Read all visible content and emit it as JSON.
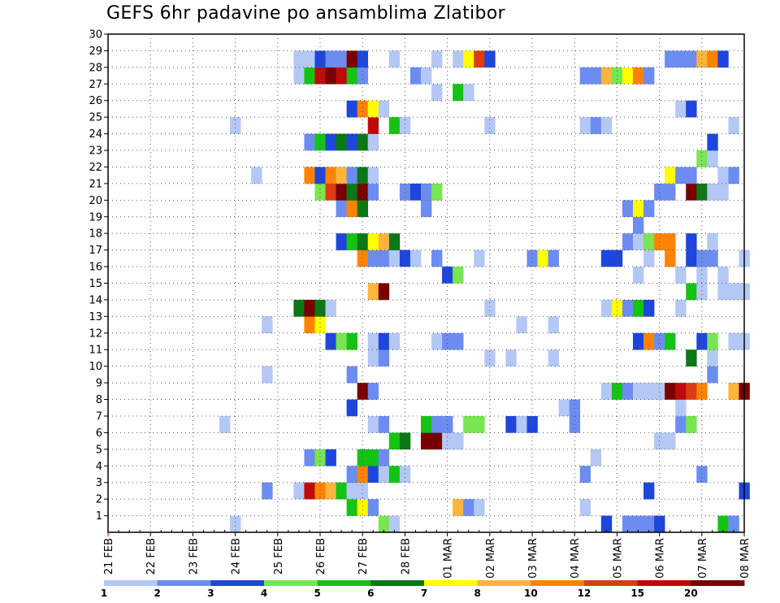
{
  "chart_data": {
    "type": "heatmap",
    "title": "GEFS 6hr padavine po ansamblima Zlatibor",
    "xlabel": "",
    "ylabel": "",
    "x_ticks": [
      "21 FEB",
      "22 FEB",
      "23 FEB",
      "24 FEB",
      "25 FEB",
      "26 FEB",
      "27 FEB",
      "28 FEB",
      "01 MAR",
      "02 MAR",
      "03 MAR",
      "04 MAR",
      "05 MAR",
      "06 MAR",
      "07 MAR",
      "08 MAR"
    ],
    "y_ticks": [
      "1",
      "2",
      "3",
      "4",
      "5",
      "6",
      "7",
      "8",
      "9",
      "10",
      "11",
      "12",
      "13",
      "14",
      "15",
      "16",
      "17",
      "18",
      "19",
      "20",
      "21",
      "22",
      "23",
      "24",
      "25",
      "26",
      "27",
      "28",
      "29",
      "30"
    ],
    "timesteps_per_day": 4,
    "n_timesteps": 61,
    "ylim": [
      0,
      30
    ],
    "grid": true,
    "color_levels": [
      "1",
      "2",
      "3",
      "4",
      "5",
      "6",
      "7",
      "8",
      "10",
      "12",
      "15",
      "20"
    ],
    "colors": [
      "#b4c8f5",
      "#6c8cf0",
      "#1e46dc",
      "#78e650",
      "#14c314",
      "#0a7814",
      "#ffff00",
      "#ffb43c",
      "#ff8200",
      "#dc3c14",
      "#be0a0a",
      "#780000"
    ],
    "cells": [
      {
        "t": 47,
        "m": 1,
        "c": 2
      },
      {
        "t": 49,
        "m": 1,
        "c": 1
      },
      {
        "t": 50,
        "m": 1,
        "c": 1
      },
      {
        "t": 51,
        "m": 1,
        "c": 1
      },
      {
        "t": 52,
        "m": 1,
        "c": 2
      },
      {
        "t": 58,
        "m": 1,
        "c": 4
      },
      {
        "t": 59,
        "m": 1,
        "c": 1
      },
      {
        "t": 12,
        "m": 1,
        "c": 0
      },
      {
        "t": 26,
        "m": 1,
        "c": 3
      },
      {
        "t": 27,
        "m": 1,
        "c": 0
      },
      {
        "t": 23,
        "m": 2,
        "c": 4
      },
      {
        "t": 24,
        "m": 2,
        "c": 6
      },
      {
        "t": 25,
        "m": 2,
        "c": 1
      },
      {
        "t": 33,
        "m": 2,
        "c": 7
      },
      {
        "t": 34,
        "m": 2,
        "c": 1
      },
      {
        "t": 35,
        "m": 2,
        "c": 0
      },
      {
        "t": 45,
        "m": 2,
        "c": 0
      },
      {
        "t": 15,
        "m": 3,
        "c": 1
      },
      {
        "t": 18,
        "m": 3,
        "c": 0
      },
      {
        "t": 19,
        "m": 3,
        "c": 10
      },
      {
        "t": 20,
        "m": 3,
        "c": 8
      },
      {
        "t": 21,
        "m": 3,
        "c": 7
      },
      {
        "t": 22,
        "m": 3,
        "c": 4
      },
      {
        "t": 23,
        "m": 3,
        "c": 0
      },
      {
        "t": 24,
        "m": 3,
        "c": 0
      },
      {
        "t": 51,
        "m": 3,
        "c": 2
      },
      {
        "t": 60,
        "m": 3,
        "c": 2
      },
      {
        "t": 23,
        "m": 4,
        "c": 1
      },
      {
        "t": 24,
        "m": 4,
        "c": 8
      },
      {
        "t": 25,
        "m": 4,
        "c": 2
      },
      {
        "t": 26,
        "m": 4,
        "c": 0
      },
      {
        "t": 27,
        "m": 4,
        "c": 4
      },
      {
        "t": 28,
        "m": 4,
        "c": 0
      },
      {
        "t": 45,
        "m": 4,
        "c": 1
      },
      {
        "t": 56,
        "m": 4,
        "c": 1
      },
      {
        "t": 19,
        "m": 5,
        "c": 1
      },
      {
        "t": 20,
        "m": 5,
        "c": 3
      },
      {
        "t": 21,
        "m": 5,
        "c": 2
      },
      {
        "t": 24,
        "m": 5,
        "c": 4
      },
      {
        "t": 25,
        "m": 5,
        "c": 4
      },
      {
        "t": 26,
        "m": 5,
        "c": 1
      },
      {
        "t": 46,
        "m": 5,
        "c": 0
      },
      {
        "t": 27,
        "m": 6,
        "c": 4
      },
      {
        "t": 28,
        "m": 6,
        "c": 5
      },
      {
        "t": 30,
        "m": 6,
        "c": 11
      },
      {
        "t": 31,
        "m": 6,
        "c": 11
      },
      {
        "t": 32,
        "m": 6,
        "c": 0
      },
      {
        "t": 33,
        "m": 6,
        "c": 0
      },
      {
        "t": 52,
        "m": 6,
        "c": 0
      },
      {
        "t": 53,
        "m": 6,
        "c": 0
      },
      {
        "t": 11,
        "m": 7,
        "c": 0
      },
      {
        "t": 25,
        "m": 7,
        "c": 0
      },
      {
        "t": 26,
        "m": 7,
        "c": 1
      },
      {
        "t": 30,
        "m": 7,
        "c": 4
      },
      {
        "t": 31,
        "m": 7,
        "c": 1
      },
      {
        "t": 32,
        "m": 7,
        "c": 1
      },
      {
        "t": 34,
        "m": 7,
        "c": 3
      },
      {
        "t": 35,
        "m": 7,
        "c": 3
      },
      {
        "t": 38,
        "m": 7,
        "c": 2
      },
      {
        "t": 39,
        "m": 7,
        "c": 0
      },
      {
        "t": 40,
        "m": 7,
        "c": 2
      },
      {
        "t": 44,
        "m": 7,
        "c": 1
      },
      {
        "t": 54,
        "m": 7,
        "c": 1
      },
      {
        "t": 55,
        "m": 7,
        "c": 3
      },
      {
        "t": 23,
        "m": 8,
        "c": 2
      },
      {
        "t": 43,
        "m": 8,
        "c": 0
      },
      {
        "t": 44,
        "m": 8,
        "c": 1
      },
      {
        "t": 54,
        "m": 8,
        "c": 0
      },
      {
        "t": 24,
        "m": 9,
        "c": 11
      },
      {
        "t": 25,
        "m": 9,
        "c": 1
      },
      {
        "t": 47,
        "m": 9,
        "c": 0
      },
      {
        "t": 48,
        "m": 9,
        "c": 4
      },
      {
        "t": 49,
        "m": 9,
        "c": 1
      },
      {
        "t": 50,
        "m": 9,
        "c": 0
      },
      {
        "t": 51,
        "m": 9,
        "c": 0
      },
      {
        "t": 52,
        "m": 9,
        "c": 0
      },
      {
        "t": 53,
        "m": 9,
        "c": 11
      },
      {
        "t": 54,
        "m": 9,
        "c": 10
      },
      {
        "t": 55,
        "m": 9,
        "c": 9
      },
      {
        "t": 56,
        "m": 9,
        "c": 8
      },
      {
        "t": 59,
        "m": 9,
        "c": 7
      },
      {
        "t": 60,
        "m": 9,
        "c": 11
      },
      {
        "t": 15,
        "m": 10,
        "c": 0
      },
      {
        "t": 23,
        "m": 10,
        "c": 1
      },
      {
        "t": 57,
        "m": 10,
        "c": 1
      },
      {
        "t": 25,
        "m": 11,
        "c": 0
      },
      {
        "t": 26,
        "m": 11,
        "c": 1
      },
      {
        "t": 36,
        "m": 11,
        "c": 0
      },
      {
        "t": 38,
        "m": 11,
        "c": 0
      },
      {
        "t": 42,
        "m": 11,
        "c": 0
      },
      {
        "t": 55,
        "m": 11,
        "c": 5
      },
      {
        "t": 57,
        "m": 11,
        "c": 0
      },
      {
        "t": 21,
        "m": 12,
        "c": 2
      },
      {
        "t": 22,
        "m": 12,
        "c": 3
      },
      {
        "t": 23,
        "m": 12,
        "c": 4
      },
      {
        "t": 25,
        "m": 12,
        "c": 0
      },
      {
        "t": 26,
        "m": 12,
        "c": 2
      },
      {
        "t": 27,
        "m": 12,
        "c": 0
      },
      {
        "t": 31,
        "m": 12,
        "c": 0
      },
      {
        "t": 32,
        "m": 12,
        "c": 1
      },
      {
        "t": 33,
        "m": 12,
        "c": 1
      },
      {
        "t": 50,
        "m": 12,
        "c": 2
      },
      {
        "t": 51,
        "m": 12,
        "c": 8
      },
      {
        "t": 52,
        "m": 12,
        "c": 1
      },
      {
        "t": 53,
        "m": 12,
        "c": 4
      },
      {
        "t": 56,
        "m": 12,
        "c": 2
      },
      {
        "t": 57,
        "m": 12,
        "c": 3
      },
      {
        "t": 59,
        "m": 12,
        "c": 0
      },
      {
        "t": 60,
        "m": 12,
        "c": 0
      },
      {
        "t": 15,
        "m": 13,
        "c": 0
      },
      {
        "t": 19,
        "m": 13,
        "c": 8
      },
      {
        "t": 20,
        "m": 13,
        "c": 6
      },
      {
        "t": 39,
        "m": 13,
        "c": 0
      },
      {
        "t": 42,
        "m": 13,
        "c": 0
      },
      {
        "t": 18,
        "m": 14,
        "c": 5
      },
      {
        "t": 19,
        "m": 14,
        "c": 11
      },
      {
        "t": 20,
        "m": 14,
        "c": 5
      },
      {
        "t": 21,
        "m": 14,
        "c": 0
      },
      {
        "t": 36,
        "m": 14,
        "c": 0
      },
      {
        "t": 47,
        "m": 14,
        "c": 0
      },
      {
        "t": 48,
        "m": 14,
        "c": 6
      },
      {
        "t": 49,
        "m": 14,
        "c": 1
      },
      {
        "t": 50,
        "m": 14,
        "c": 4
      },
      {
        "t": 51,
        "m": 14,
        "c": 2
      },
      {
        "t": 54,
        "m": 14,
        "c": 0
      },
      {
        "t": 25,
        "m": 15,
        "c": 7
      },
      {
        "t": 26,
        "m": 15,
        "c": 11
      },
      {
        "t": 55,
        "m": 15,
        "c": 4
      },
      {
        "t": 56,
        "m": 15,
        "c": 0
      },
      {
        "t": 58,
        "m": 15,
        "c": 0
      },
      {
        "t": 59,
        "m": 15,
        "c": 0
      },
      {
        "t": 60,
        "m": 15,
        "c": 0
      },
      {
        "t": 32,
        "m": 16,
        "c": 2
      },
      {
        "t": 33,
        "m": 16,
        "c": 3
      },
      {
        "t": 50,
        "m": 16,
        "c": 0
      },
      {
        "t": 54,
        "m": 16,
        "c": 0
      },
      {
        "t": 56,
        "m": 16,
        "c": 0
      },
      {
        "t": 58,
        "m": 16,
        "c": 0
      },
      {
        "t": 24,
        "m": 17,
        "c": 8
      },
      {
        "t": 25,
        "m": 17,
        "c": 1
      },
      {
        "t": 26,
        "m": 17,
        "c": 1
      },
      {
        "t": 27,
        "m": 17,
        "c": 0
      },
      {
        "t": 28,
        "m": 17,
        "c": 2
      },
      {
        "t": 29,
        "m": 17,
        "c": 0
      },
      {
        "t": 31,
        "m": 17,
        "c": 1
      },
      {
        "t": 35,
        "m": 17,
        "c": 0
      },
      {
        "t": 40,
        "m": 17,
        "c": 1
      },
      {
        "t": 41,
        "m": 17,
        "c": 6
      },
      {
        "t": 42,
        "m": 17,
        "c": 1
      },
      {
        "t": 47,
        "m": 17,
        "c": 2
      },
      {
        "t": 48,
        "m": 17,
        "c": 2
      },
      {
        "t": 51,
        "m": 17,
        "c": 0
      },
      {
        "t": 53,
        "m": 17,
        "c": 8
      },
      {
        "t": 55,
        "m": 17,
        "c": 2
      },
      {
        "t": 56,
        "m": 17,
        "c": 1
      },
      {
        "t": 57,
        "m": 17,
        "c": 1
      },
      {
        "t": 60,
        "m": 17,
        "c": 0
      },
      {
        "t": 22,
        "m": 18,
        "c": 2
      },
      {
        "t": 23,
        "m": 18,
        "c": 4
      },
      {
        "t": 24,
        "m": 18,
        "c": 5
      },
      {
        "t": 25,
        "m": 18,
        "c": 6
      },
      {
        "t": 26,
        "m": 18,
        "c": 7
      },
      {
        "t": 27,
        "m": 18,
        "c": 5
      },
      {
        "t": 49,
        "m": 18,
        "c": 1
      },
      {
        "t": 50,
        "m": 18,
        "c": 0
      },
      {
        "t": 51,
        "m": 18,
        "c": 3
      },
      {
        "t": 52,
        "m": 18,
        "c": 8
      },
      {
        "t": 53,
        "m": 18,
        "c": 8
      },
      {
        "t": 55,
        "m": 18,
        "c": 2
      },
      {
        "t": 57,
        "m": 18,
        "c": 0
      },
      {
        "t": 50,
        "m": 19,
        "c": 1
      },
      {
        "t": 22,
        "m": 20,
        "c": 1
      },
      {
        "t": 23,
        "m": 20,
        "c": 8
      },
      {
        "t": 24,
        "m": 20,
        "c": 5
      },
      {
        "t": 30,
        "m": 20,
        "c": 1
      },
      {
        "t": 49,
        "m": 20,
        "c": 1
      },
      {
        "t": 50,
        "m": 20,
        "c": 6
      },
      {
        "t": 51,
        "m": 20,
        "c": 1
      },
      {
        "t": 20,
        "m": 21,
        "c": 3
      },
      {
        "t": 21,
        "m": 21,
        "c": 9
      },
      {
        "t": 22,
        "m": 21,
        "c": 11
      },
      {
        "t": 23,
        "m": 21,
        "c": 5
      },
      {
        "t": 24,
        "m": 21,
        "c": 11
      },
      {
        "t": 25,
        "m": 21,
        "c": 1
      },
      {
        "t": 28,
        "m": 21,
        "c": 1
      },
      {
        "t": 29,
        "m": 21,
        "c": 2
      },
      {
        "t": 30,
        "m": 21,
        "c": 1
      },
      {
        "t": 31,
        "m": 21,
        "c": 3
      },
      {
        "t": 52,
        "m": 21,
        "c": 1
      },
      {
        "t": 53,
        "m": 21,
        "c": 1
      },
      {
        "t": 55,
        "m": 21,
        "c": 11
      },
      {
        "t": 56,
        "m": 21,
        "c": 5
      },
      {
        "t": 57,
        "m": 21,
        "c": 0
      },
      {
        "t": 58,
        "m": 21,
        "c": 0
      },
      {
        "t": 14,
        "m": 22,
        "c": 0
      },
      {
        "t": 19,
        "m": 22,
        "c": 8
      },
      {
        "t": 20,
        "m": 22,
        "c": 2
      },
      {
        "t": 21,
        "m": 22,
        "c": 8
      },
      {
        "t": 22,
        "m": 22,
        "c": 7
      },
      {
        "t": 23,
        "m": 22,
        "c": 1
      },
      {
        "t": 24,
        "m": 22,
        "c": 5
      },
      {
        "t": 25,
        "m": 22,
        "c": 0
      },
      {
        "t": 53,
        "m": 22,
        "c": 6
      },
      {
        "t": 54,
        "m": 22,
        "c": 1
      },
      {
        "t": 55,
        "m": 22,
        "c": 1
      },
      {
        "t": 58,
        "m": 22,
        "c": 0
      },
      {
        "t": 59,
        "m": 22,
        "c": 1
      },
      {
        "t": 56,
        "m": 23,
        "c": 3
      },
      {
        "t": 57,
        "m": 23,
        "c": 0
      },
      {
        "t": 19,
        "m": 24,
        "c": 1
      },
      {
        "t": 20,
        "m": 24,
        "c": 4
      },
      {
        "t": 21,
        "m": 24,
        "c": 2
      },
      {
        "t": 22,
        "m": 24,
        "c": 5
      },
      {
        "t": 23,
        "m": 24,
        "c": 2
      },
      {
        "t": 24,
        "m": 24,
        "c": 5
      },
      {
        "t": 25,
        "m": 24,
        "c": 0
      },
      {
        "t": 57,
        "m": 24,
        "c": 2
      },
      {
        "t": 12,
        "m": 25,
        "c": 0
      },
      {
        "t": 25,
        "m": 25,
        "c": 10
      },
      {
        "t": 27,
        "m": 25,
        "c": 4
      },
      {
        "t": 28,
        "m": 25,
        "c": 0
      },
      {
        "t": 36,
        "m": 25,
        "c": 0
      },
      {
        "t": 45,
        "m": 25,
        "c": 0
      },
      {
        "t": 46,
        "m": 25,
        "c": 1
      },
      {
        "t": 47,
        "m": 25,
        "c": 0
      },
      {
        "t": 59,
        "m": 25,
        "c": 0
      },
      {
        "t": 23,
        "m": 26,
        "c": 2
      },
      {
        "t": 24,
        "m": 26,
        "c": 8
      },
      {
        "t": 25,
        "m": 26,
        "c": 6
      },
      {
        "t": 26,
        "m": 26,
        "c": 0
      },
      {
        "t": 54,
        "m": 26,
        "c": 0
      },
      {
        "t": 55,
        "m": 26,
        "c": 2
      },
      {
        "t": 31,
        "m": 27,
        "c": 0
      },
      {
        "t": 33,
        "m": 27,
        "c": 4
      },
      {
        "t": 34,
        "m": 27,
        "c": 0
      },
      {
        "t": 18,
        "m": 28,
        "c": 0
      },
      {
        "t": 19,
        "m": 28,
        "c": 4
      },
      {
        "t": 20,
        "m": 28,
        "c": 10
      },
      {
        "t": 21,
        "m": 28,
        "c": 11
      },
      {
        "t": 22,
        "m": 28,
        "c": 10
      },
      {
        "t": 23,
        "m": 28,
        "c": 4
      },
      {
        "t": 24,
        "m": 28,
        "c": 1
      },
      {
        "t": 29,
        "m": 28,
        "c": 1
      },
      {
        "t": 30,
        "m": 28,
        "c": 0
      },
      {
        "t": 45,
        "m": 28,
        "c": 1
      },
      {
        "t": 46,
        "m": 28,
        "c": 1
      },
      {
        "t": 47,
        "m": 28,
        "c": 7
      },
      {
        "t": 48,
        "m": 28,
        "c": 3
      },
      {
        "t": 49,
        "m": 28,
        "c": 6
      },
      {
        "t": 50,
        "m": 28,
        "c": 8
      },
      {
        "t": 51,
        "m": 28,
        "c": 1
      },
      {
        "t": 18,
        "m": 29,
        "c": 0
      },
      {
        "t": 19,
        "m": 29,
        "c": 0
      },
      {
        "t": 20,
        "m": 29,
        "c": 2
      },
      {
        "t": 21,
        "m": 29,
        "c": 1
      },
      {
        "t": 22,
        "m": 29,
        "c": 1
      },
      {
        "t": 23,
        "m": 29,
        "c": 11
      },
      {
        "t": 24,
        "m": 29,
        "c": 2
      },
      {
        "t": 27,
        "m": 29,
        "c": 0
      },
      {
        "t": 31,
        "m": 29,
        "c": 0
      },
      {
        "t": 33,
        "m": 29,
        "c": 0
      },
      {
        "t": 34,
        "m": 29,
        "c": 6
      },
      {
        "t": 35,
        "m": 29,
        "c": 9
      },
      {
        "t": 36,
        "m": 29,
        "c": 2
      },
      {
        "t": 53,
        "m": 29,
        "c": 1
      },
      {
        "t": 54,
        "m": 29,
        "c": 1
      },
      {
        "t": 55,
        "m": 29,
        "c": 1
      },
      {
        "t": 56,
        "m": 29,
        "c": 7
      },
      {
        "t": 57,
        "m": 29,
        "c": 8
      },
      {
        "t": 58,
        "m": 29,
        "c": 2
      }
    ]
  }
}
